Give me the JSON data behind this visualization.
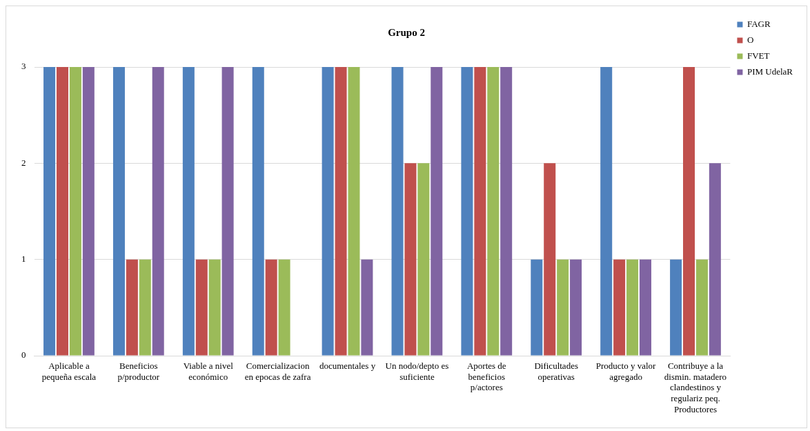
{
  "chart_data": {
    "type": "bar",
    "title": "Grupo 2",
    "categories": [
      "Aplicable a pequeña escala",
      "Beneficios p/productor",
      "Viable a nivel económico",
      "Comercializacion en epocas de zafra",
      "documentales y",
      "Un nodo/depto es suficiente",
      "Aportes de beneficios p/actores",
      "Dificultades operativas",
      "Producto y valor agregado",
      "Contribuye a la dismin. matadero clandestinos y regulariz peq. Productores"
    ],
    "series": [
      {
        "name": "FAGR",
        "color": "#4f81bd",
        "values": [
          3,
          3,
          3,
          3,
          3,
          3,
          3,
          1,
          3,
          1
        ]
      },
      {
        "name": "O",
        "color": "#c0504d",
        "values": [
          3,
          1,
          1,
          1,
          3,
          2,
          3,
          2,
          1,
          3
        ]
      },
      {
        "name": "FVET",
        "color": "#9bbb59",
        "values": [
          3,
          1,
          1,
          1,
          3,
          2,
          3,
          1,
          1,
          1
        ]
      },
      {
        "name": "PIM UdelaR",
        "color": "#8064a2",
        "values": [
          3,
          3,
          3,
          0,
          1,
          3,
          3,
          1,
          1,
          2
        ]
      }
    ],
    "ylim": [
      0,
      3
    ],
    "yticks": [
      0,
      1,
      2,
      3
    ],
    "grid": "y",
    "legend": "top right"
  }
}
